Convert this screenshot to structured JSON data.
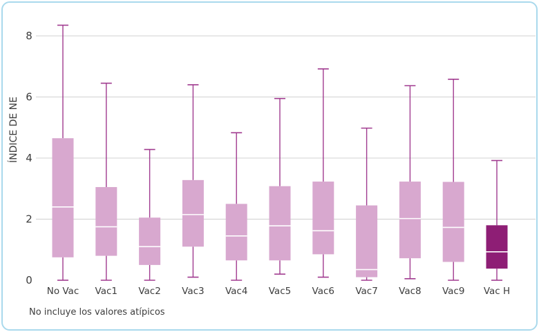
{
  "chart_data": {
    "type": "boxplot",
    "ylabel": "ÍNDICE DE NE",
    "ylim": [
      0,
      8
    ],
    "yticks": [
      "0",
      "2",
      "4",
      "6",
      "8"
    ],
    "grid": true,
    "note": "No incluye los valores atípicos",
    "categories": [
      "No Vac",
      "Vac1",
      "Vac2",
      "Vac3",
      "Vac4",
      "Vac5",
      "Vac6",
      "Vac7",
      "Vac8",
      "Vac9",
      "Vac H"
    ],
    "boxes": [
      {
        "min": 0.0,
        "q1": 0.75,
        "median": 2.4,
        "q3": 4.65,
        "max": 8.35
      },
      {
        "min": 0.0,
        "q1": 0.8,
        "median": 1.75,
        "q3": 3.05,
        "max": 6.45
      },
      {
        "min": 0.0,
        "q1": 0.5,
        "median": 1.1,
        "q3": 2.05,
        "max": 4.28
      },
      {
        "min": 0.1,
        "q1": 1.1,
        "median": 2.15,
        "q3": 3.28,
        "max": 6.4
      },
      {
        "min": 0.0,
        "q1": 0.65,
        "median": 1.45,
        "q3": 2.5,
        "max": 4.83
      },
      {
        "min": 0.2,
        "q1": 0.65,
        "median": 1.78,
        "q3": 3.08,
        "max": 5.95
      },
      {
        "min": 0.1,
        "q1": 0.85,
        "median": 1.62,
        "q3": 3.23,
        "max": 6.92
      },
      {
        "min": 0.0,
        "q1": 0.1,
        "median": 0.35,
        "q3": 2.45,
        "max": 4.98
      },
      {
        "min": 0.05,
        "q1": 0.72,
        "median": 2.02,
        "q3": 3.23,
        "max": 6.37
      },
      {
        "min": 0.0,
        "q1": 0.6,
        "median": 1.73,
        "q3": 3.22,
        "max": 6.58
      },
      {
        "min": 0.0,
        "q1": 0.38,
        "median": 0.93,
        "q3": 1.8,
        "max": 3.92
      }
    ],
    "colors": {
      "box": "#d8a8cf",
      "box_highlight": "#8e1e75",
      "whisker": "#a03a8f",
      "median": "#ffffff",
      "grid": "#d0d0d0",
      "frame": "#a9d9ec"
    },
    "highlight_index": 10
  }
}
